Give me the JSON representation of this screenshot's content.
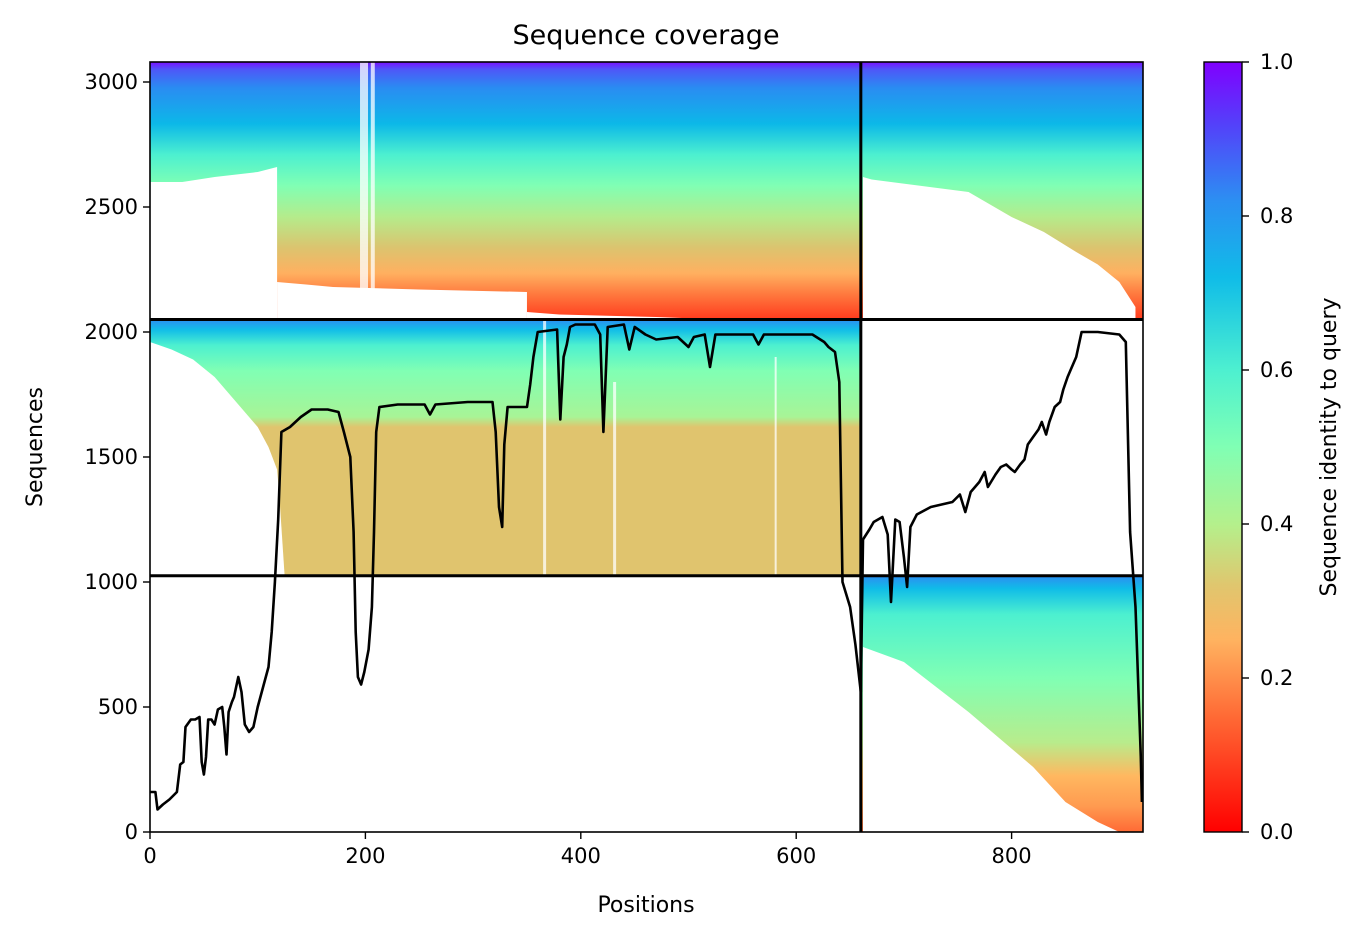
{
  "chart_data": {
    "type": "heatmap",
    "title": "Sequence coverage",
    "xlabel": "Positions",
    "ylabel": "Sequences",
    "xlim": [
      0,
      922
    ],
    "ylim": [
      0,
      3080
    ],
    "x_ticks": [
      0,
      200,
      400,
      600,
      800
    ],
    "y_ticks": [
      0,
      500,
      1000,
      1500,
      2000,
      2500,
      3000
    ],
    "colorbar": {
      "label": "Sequence identity to query",
      "colormap": "rainbow_r",
      "range": [
        0,
        1
      ],
      "ticks": [
        "0.0",
        "0.2",
        "0.4",
        "0.6",
        "0.8",
        "1.0"
      ],
      "tick_values": [
        0,
        0.2,
        0.4,
        0.6,
        0.8,
        1.0
      ]
    },
    "divider_lines": {
      "vertical_x": 660,
      "horizontal_y": [
        1025,
        2050
      ]
    },
    "coverage_blocks": [
      {
        "name": "upper-left",
        "x_range": [
          0,
          660
        ],
        "seq_range": [
          2050,
          3080
        ],
        "identity_range": [
          0.15,
          1.0
        ]
      },
      {
        "name": "upper-right",
        "x_range": [
          660,
          922
        ],
        "seq_range": [
          2050,
          3080
        ],
        "identity_range": [
          0.15,
          1.0
        ]
      },
      {
        "name": "middle-left",
        "x_range": [
          0,
          660
        ],
        "seq_range": [
          1025,
          2050
        ],
        "identity_range": [
          0.3,
          0.85
        ]
      },
      {
        "name": "lower-right",
        "x_range": [
          660,
          922
        ],
        "seq_range": [
          0,
          1025
        ],
        "identity_range": [
          0.15,
          0.85
        ]
      }
    ],
    "series": [
      {
        "type": "line",
        "color": "#000000",
        "points": [
          [
            0,
            160
          ],
          [
            5,
            160
          ],
          [
            7,
            90
          ],
          [
            12,
            110
          ],
          [
            18,
            130
          ],
          [
            25,
            160
          ],
          [
            28,
            270
          ],
          [
            31,
            280
          ],
          [
            33,
            420
          ],
          [
            38,
            450
          ],
          [
            42,
            450
          ],
          [
            46,
            460
          ],
          [
            48,
            280
          ],
          [
            50,
            230
          ],
          [
            52,
            300
          ],
          [
            54,
            450
          ],
          [
            57,
            450
          ],
          [
            60,
            430
          ],
          [
            63,
            490
          ],
          [
            67,
            500
          ],
          [
            69,
            420
          ],
          [
            71,
            310
          ],
          [
            73,
            480
          ],
          [
            76,
            520
          ],
          [
            78,
            540
          ],
          [
            82,
            620
          ],
          [
            85,
            560
          ],
          [
            88,
            430
          ],
          [
            92,
            400
          ],
          [
            96,
            420
          ],
          [
            100,
            500
          ],
          [
            105,
            580
          ],
          [
            110,
            660
          ],
          [
            113,
            800
          ],
          [
            116,
            1000
          ],
          [
            119,
            1250
          ],
          [
            122,
            1600
          ],
          [
            130,
            1620
          ],
          [
            140,
            1660
          ],
          [
            150,
            1690
          ],
          [
            165,
            1690
          ],
          [
            175,
            1680
          ],
          [
            180,
            1600
          ],
          [
            186,
            1500
          ],
          [
            189,
            1200
          ],
          [
            191,
            800
          ],
          [
            193,
            620
          ],
          [
            196,
            590
          ],
          [
            199,
            640
          ],
          [
            203,
            730
          ],
          [
            206,
            900
          ],
          [
            208,
            1200
          ],
          [
            210,
            1600
          ],
          [
            213,
            1700
          ],
          [
            230,
            1710
          ],
          [
            255,
            1710
          ],
          [
            260,
            1670
          ],
          [
            265,
            1710
          ],
          [
            295,
            1720
          ],
          [
            318,
            1720
          ],
          [
            321,
            1600
          ],
          [
            324,
            1300
          ],
          [
            327,
            1220
          ],
          [
            329,
            1550
          ],
          [
            332,
            1700
          ],
          [
            350,
            1700
          ],
          [
            353,
            1790
          ],
          [
            356,
            1900
          ],
          [
            360,
            2000
          ],
          [
            378,
            2010
          ],
          [
            381,
            1650
          ],
          [
            384,
            1900
          ],
          [
            387,
            1950
          ],
          [
            390,
            2020
          ],
          [
            395,
            2030
          ],
          [
            413,
            2030
          ],
          [
            418,
            1990
          ],
          [
            421,
            1600
          ],
          [
            425,
            2020
          ],
          [
            440,
            2030
          ],
          [
            445,
            1930
          ],
          [
            450,
            2020
          ],
          [
            460,
            1990
          ],
          [
            470,
            1970
          ],
          [
            490,
            1980
          ],
          [
            500,
            1940
          ],
          [
            505,
            1980
          ],
          [
            515,
            1990
          ],
          [
            520,
            1860
          ],
          [
            525,
            1990
          ],
          [
            540,
            1990
          ],
          [
            560,
            1990
          ],
          [
            565,
            1950
          ],
          [
            570,
            1990
          ],
          [
            615,
            1990
          ],
          [
            626,
            1960
          ],
          [
            630,
            1940
          ],
          [
            636,
            1920
          ],
          [
            640,
            1800
          ],
          [
            643,
            1000
          ],
          [
            650,
            900
          ],
          [
            655,
            750
          ],
          [
            660,
            560
          ],
          [
            662,
            1170
          ],
          [
            668,
            1210
          ],
          [
            672,
            1240
          ],
          [
            680,
            1260
          ],
          [
            685,
            1190
          ],
          [
            688,
            920
          ],
          [
            692,
            1250
          ],
          [
            696,
            1240
          ],
          [
            700,
            1100
          ],
          [
            703,
            980
          ],
          [
            706,
            1220
          ],
          [
            712,
            1270
          ],
          [
            725,
            1300
          ],
          [
            735,
            1310
          ],
          [
            745,
            1320
          ],
          [
            752,
            1350
          ],
          [
            757,
            1280
          ],
          [
            762,
            1360
          ],
          [
            770,
            1400
          ],
          [
            775,
            1440
          ],
          [
            778,
            1380
          ],
          [
            785,
            1430
          ],
          [
            790,
            1460
          ],
          [
            795,
            1470
          ],
          [
            800,
            1450
          ],
          [
            803,
            1440
          ],
          [
            808,
            1470
          ],
          [
            812,
            1490
          ],
          [
            815,
            1550
          ],
          [
            820,
            1580
          ],
          [
            825,
            1610
          ],
          [
            828,
            1640
          ],
          [
            832,
            1590
          ],
          [
            835,
            1640
          ],
          [
            840,
            1700
          ],
          [
            845,
            1720
          ],
          [
            848,
            1770
          ],
          [
            852,
            1820
          ],
          [
            855,
            1850
          ],
          [
            860,
            1900
          ],
          [
            865,
            2000
          ],
          [
            880,
            2000
          ],
          [
            900,
            1990
          ],
          [
            906,
            1960
          ],
          [
            910,
            1200
          ],
          [
            915,
            900
          ],
          [
            920,
            300
          ],
          [
            921,
            120
          ]
        ]
      }
    ]
  }
}
